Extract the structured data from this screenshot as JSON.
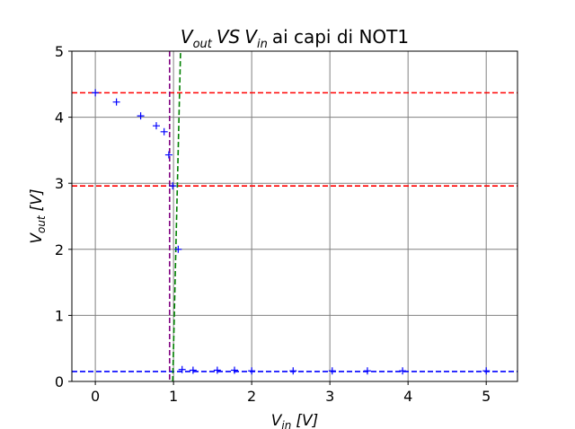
{
  "chart_data": {
    "type": "scatter",
    "title": {
      "var_out": "V",
      "sub_out": "out",
      "vs": "VS",
      "var_in": "V",
      "sub_in": "in",
      "suffix": "ai capi di NOT1"
    },
    "xlabel": {
      "var": "V",
      "sub": "in",
      "unit": "[V]"
    },
    "ylabel": {
      "var": "V",
      "sub": "out",
      "unit": "[V]"
    },
    "xlim": [
      -0.3,
      5.4
    ],
    "ylim": [
      0,
      5
    ],
    "xticks": [
      0,
      1,
      2,
      3,
      4,
      5
    ],
    "yticks": [
      0,
      1,
      2,
      3,
      4,
      5
    ],
    "grid": true,
    "series": [
      {
        "marker": "+",
        "color": "#0000ff",
        "x": [
          0.0,
          0.27,
          0.58,
          0.78,
          0.88,
          0.94,
          0.99,
          1.06,
          1.11,
          1.25,
          1.56,
          1.78,
          2.0,
          2.53,
          3.03,
          3.48,
          3.93,
          5.0
        ],
        "y": [
          4.37,
          4.23,
          4.02,
          3.87,
          3.78,
          3.43,
          2.96,
          2.0,
          0.18,
          0.17,
          0.17,
          0.17,
          0.16,
          0.16,
          0.16,
          0.16,
          0.16,
          0.16
        ]
      }
    ],
    "hlines": [
      {
        "y": 4.37,
        "color": "#ff0000"
      },
      {
        "y": 2.96,
        "color": "#ff0000"
      },
      {
        "y": 0.15,
        "color": "#0000ff"
      }
    ],
    "vlines": [
      {
        "x": 0.95,
        "color": "#800080"
      }
    ],
    "lines": [
      {
        "x": [
          0.99,
          1.09
        ],
        "y": [
          0,
          5
        ],
        "color": "#008000"
      }
    ]
  }
}
